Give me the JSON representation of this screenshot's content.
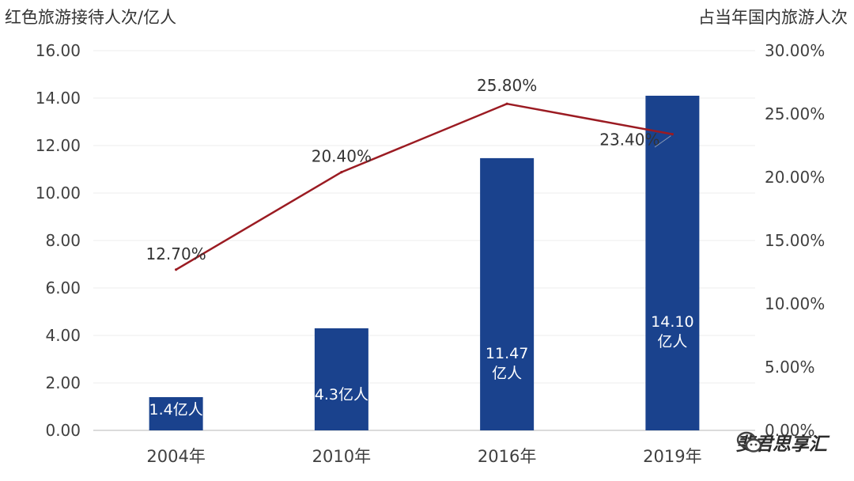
{
  "chart_data": {
    "type": "bar+line",
    "categories": [
      "2004年",
      "2010年",
      "2016年",
      "2019年"
    ],
    "series": [
      {
        "name": "红色旅游接待人次/亿人",
        "type": "bar",
        "axis": "left",
        "values": [
          1.4,
          4.3,
          11.47,
          14.1
        ],
        "data_labels": [
          [
            "1.4亿人"
          ],
          [
            "4.3亿人"
          ],
          [
            "11.47",
            "亿人"
          ],
          [
            "14.10",
            "亿人"
          ]
        ],
        "color": "#1a428d"
      },
      {
        "name": "占当年国内旅游人次",
        "type": "line",
        "axis": "right",
        "values": [
          12.7,
          20.4,
          25.8,
          23.4
        ],
        "data_labels": [
          "12.70%",
          "20.40%",
          "25.80%",
          "23.40%"
        ],
        "color": "#9b1b22"
      }
    ],
    "left_axis": {
      "title": "红色旅游接待人次/亿人",
      "range": [
        0,
        16
      ],
      "ticks": [
        "0.00",
        "2.00",
        "4.00",
        "6.00",
        "8.00",
        "10.00",
        "12.00",
        "14.00",
        "16.00"
      ]
    },
    "right_axis": {
      "title": "占当年国内旅游人次",
      "range": [
        0,
        30
      ],
      "ticks": [
        "0.00%",
        "5.00%",
        "10.00%",
        "15.00%",
        "20.00%",
        "25.00%",
        "30.00%"
      ]
    },
    "grid": true
  },
  "watermark": {
    "text": "斐君思享汇",
    "icon": "wechat-icon"
  }
}
